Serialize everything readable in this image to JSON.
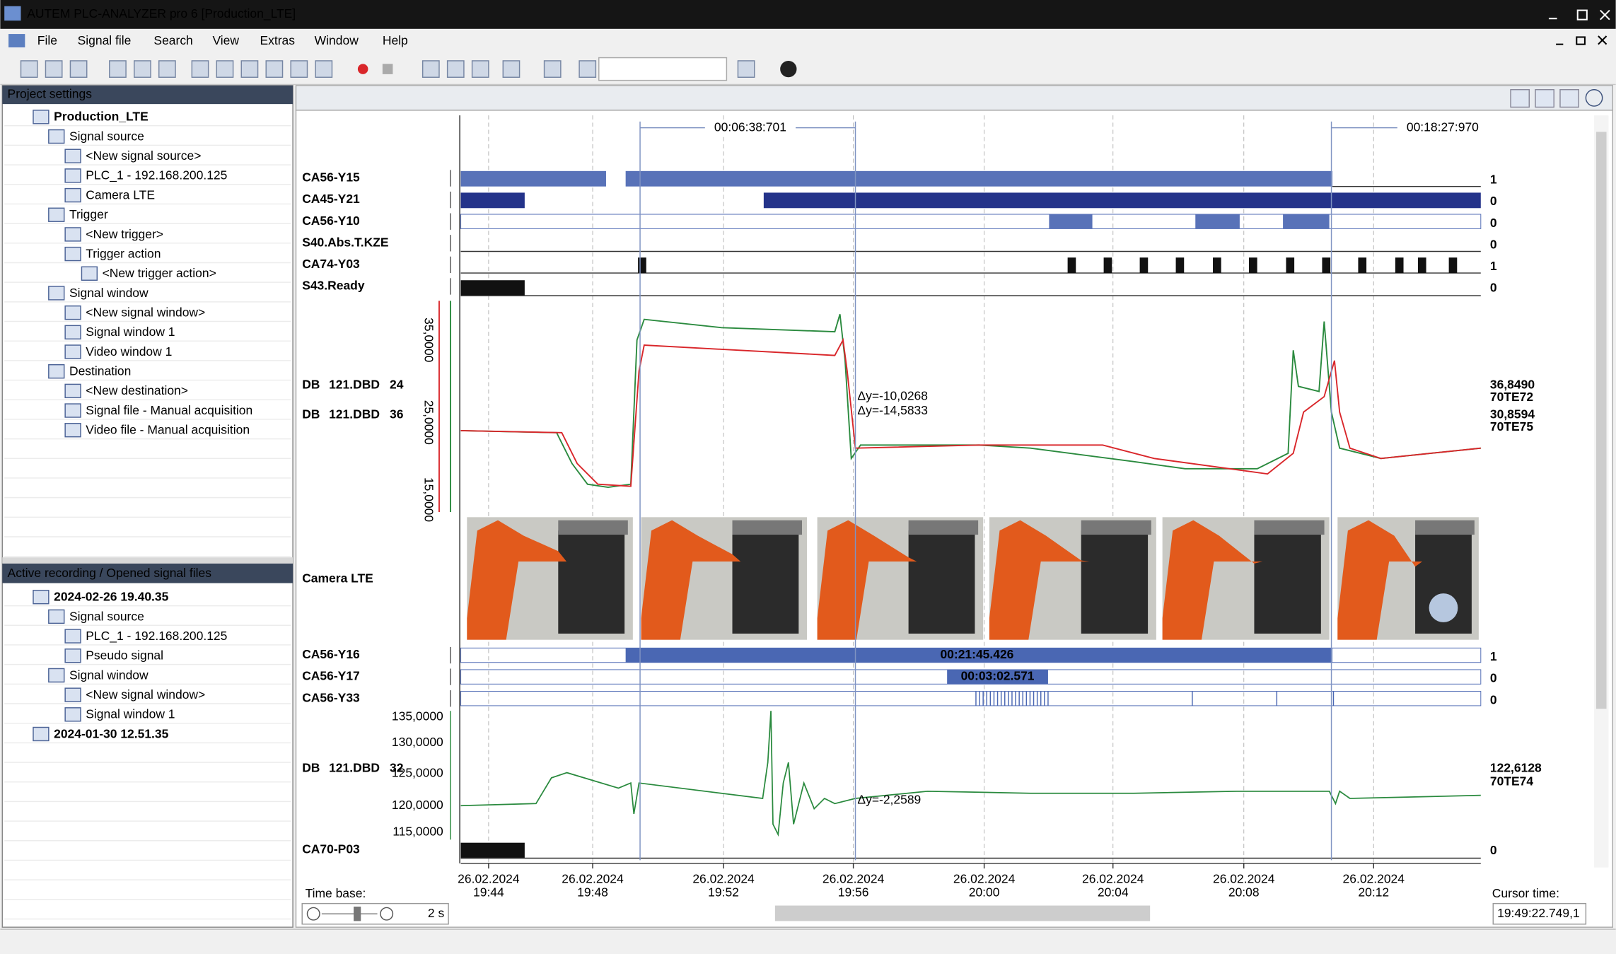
{
  "window": {
    "title": "AUTEM  PLC-ANALYZER pro 6 [Production_LTE]"
  },
  "menu": [
    "File",
    "Signal file",
    "Search",
    "View",
    "Extras",
    "Window",
    "Help"
  ],
  "project_panel": {
    "title": "Project settings",
    "items": [
      "Production_LTE",
      "Signal source",
      "<New signal source>",
      "PLC_1 - 192.168.200.125",
      "Camera LTE",
      "Trigger",
      "<New trigger>",
      "Trigger action",
      "<New trigger action>",
      "Signal window",
      "<New signal window>",
      "Signal window 1",
      "Video window 1",
      "Destination",
      "<New destination>",
      "Signal file - Manual acquisition",
      "Video file - Manual acquisition"
    ]
  },
  "recording_panel": {
    "title": "Active recording / Opened signal files",
    "items": [
      "2024-02-26 19.40.35",
      "Signal source",
      "PLC_1 - 192.168.200.125",
      "Pseudo signal",
      "Signal window",
      "<New signal window>",
      "Signal window 1",
      "2024-01-30 12.51.35"
    ]
  },
  "markers": [
    "00:06:38:701",
    "00:18:27:970"
  ],
  "digital_signals": [
    {
      "name": "CA56-Y15",
      "value": "1"
    },
    {
      "name": "CA45-Y21",
      "value": "0"
    },
    {
      "name": "CA56-Y10",
      "value": "0"
    },
    {
      "name": "S40.Abs.T.KZE",
      "value": "0"
    },
    {
      "name": "CA74-Y03",
      "value": "1"
    },
    {
      "name": "S43.Ready",
      "value": "0"
    }
  ],
  "analog_top": {
    "signals": [
      {
        "name": "DB",
        "address": "121.DBD",
        "index": "24",
        "value": "36,8490",
        "tag": "70TE72"
      },
      {
        "name": "DB",
        "address": "121.DBD",
        "index": "36",
        "value": "30,8594",
        "tag": "70TE75"
      }
    ],
    "axis_labels": [
      "35,0000",
      "25,0000",
      "15,0000"
    ],
    "deltas": [
      "Δy=-10,0268",
      "Δy=-14,5833"
    ]
  },
  "camera": {
    "name": "Camera LTE"
  },
  "digital_signals_2": [
    {
      "name": "CA56-Y16",
      "value": "1"
    },
    {
      "name": "CA56-Y17",
      "value": "0"
    },
    {
      "name": "CA56-Y33",
      "value": "0"
    }
  ],
  "intervals": [
    "00:21:45.426",
    "00:03:02.571"
  ],
  "analog_bottom": {
    "signal": {
      "name": "DB",
      "address": "121.DBD",
      "index": "32",
      "value": "122,6128",
      "tag": "70TE74"
    },
    "axis_labels": [
      "135,0000",
      "130,0000",
      "125,0000",
      "120,0000",
      "115,0000"
    ],
    "delta": "Δy=-2,2589"
  },
  "last_signal": {
    "name": "CA70-P03",
    "value": "0"
  },
  "time_axis": {
    "dates": [
      "26.02.2024",
      "26.02.2024",
      "26.02.2024",
      "26.02.2024",
      "26.02.2024",
      "26.02.2024",
      "26.02.2024",
      "26.02.2024"
    ],
    "times": [
      "19:44",
      "19:48",
      "19:52",
      "19:56",
      "20:00",
      "20:04",
      "20:08",
      "20:12"
    ]
  },
  "time_base": {
    "label": "Time base:",
    "value": "2 s"
  },
  "cursor_time": {
    "label": "Cursor time:",
    "value": "19:49:22.749,1"
  }
}
